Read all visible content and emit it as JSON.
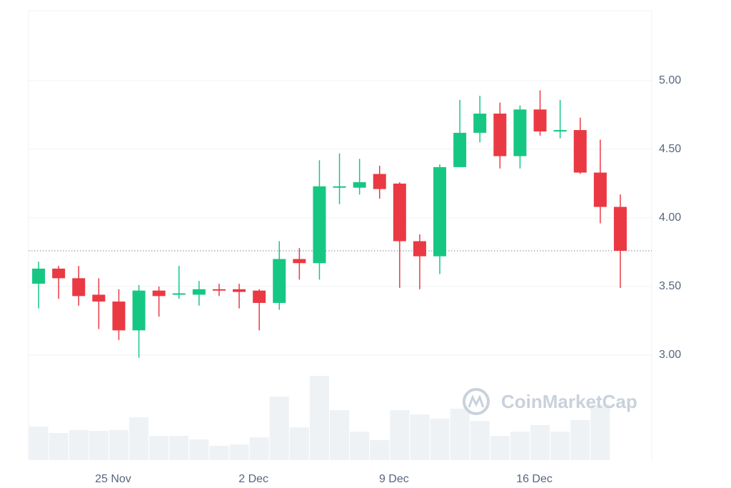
{
  "chart_data": {
    "type": "candlestick",
    "categories": [
      null,
      null,
      null,
      null,
      "25 Nov",
      null,
      null,
      null,
      null,
      null,
      null,
      "2 Dec",
      null,
      null,
      null,
      null,
      null,
      null,
      "9 Dec",
      null,
      null,
      null,
      null,
      null,
      null,
      "16 Dec",
      null,
      null,
      null,
      null
    ],
    "open": [
      3.52,
      3.63,
      3.56,
      3.44,
      3.39,
      3.18,
      3.47,
      3.44,
      3.44,
      3.48,
      3.48,
      3.47,
      3.38,
      3.7,
      3.67,
      4.22,
      4.22,
      4.32,
      4.25,
      3.83,
      3.72,
      4.37,
      4.62,
      4.76,
      4.45,
      4.79,
      4.63,
      4.64,
      4.33,
      4.08
    ],
    "high": [
      3.68,
      3.65,
      3.65,
      3.56,
      3.48,
      3.51,
      3.5,
      3.65,
      3.54,
      3.52,
      3.52,
      3.48,
      3.83,
      3.78,
      4.42,
      4.47,
      4.43,
      4.38,
      4.26,
      3.88,
      4.39,
      4.86,
      4.89,
      4.84,
      4.82,
      4.93,
      4.86,
      4.73,
      4.57,
      4.17
    ],
    "low": [
      3.34,
      3.41,
      3.36,
      3.19,
      3.11,
      2.98,
      3.28,
      3.41,
      3.36,
      3.43,
      3.34,
      3.18,
      3.33,
      3.55,
      3.55,
      4.1,
      4.17,
      4.14,
      3.49,
      3.48,
      3.59,
      4.37,
      4.55,
      4.36,
      4.36,
      4.6,
      4.58,
      4.32,
      3.96,
      3.49
    ],
    "close": [
      3.63,
      3.56,
      3.43,
      3.39,
      3.18,
      3.47,
      3.43,
      3.45,
      3.48,
      3.47,
      3.46,
      3.38,
      3.7,
      3.67,
      4.23,
      4.23,
      4.26,
      4.21,
      3.83,
      3.72,
      4.37,
      4.62,
      4.76,
      4.45,
      4.79,
      4.63,
      4.64,
      4.33,
      4.08,
      3.76
    ],
    "volume": [
      47,
      38,
      42,
      41,
      42,
      60,
      34,
      34,
      29,
      20,
      22,
      32,
      89,
      46,
      118,
      70,
      40,
      28,
      70,
      64,
      58,
      72,
      55,
      34,
      40,
      49,
      40,
      56,
      78,
      null
    ],
    "volume_lim": [
      0,
      150
    ],
    "current_price": 3.76,
    "up_color": "#16c784",
    "down_color": "#ea3943",
    "volume_color": "#eff2f5",
    "ylim": [
      2.234,
      5.51
    ],
    "yticks": [
      {
        "value": 3,
        "label": "3.00"
      },
      {
        "value": 3.5,
        "label": "3.50"
      },
      {
        "value": 4,
        "label": "4.00"
      },
      {
        "value": 4.5,
        "label": "4.50"
      },
      {
        "value": 5,
        "label": "5.00"
      }
    ],
    "grid": true,
    "watermark": "CoinMarketCap"
  }
}
